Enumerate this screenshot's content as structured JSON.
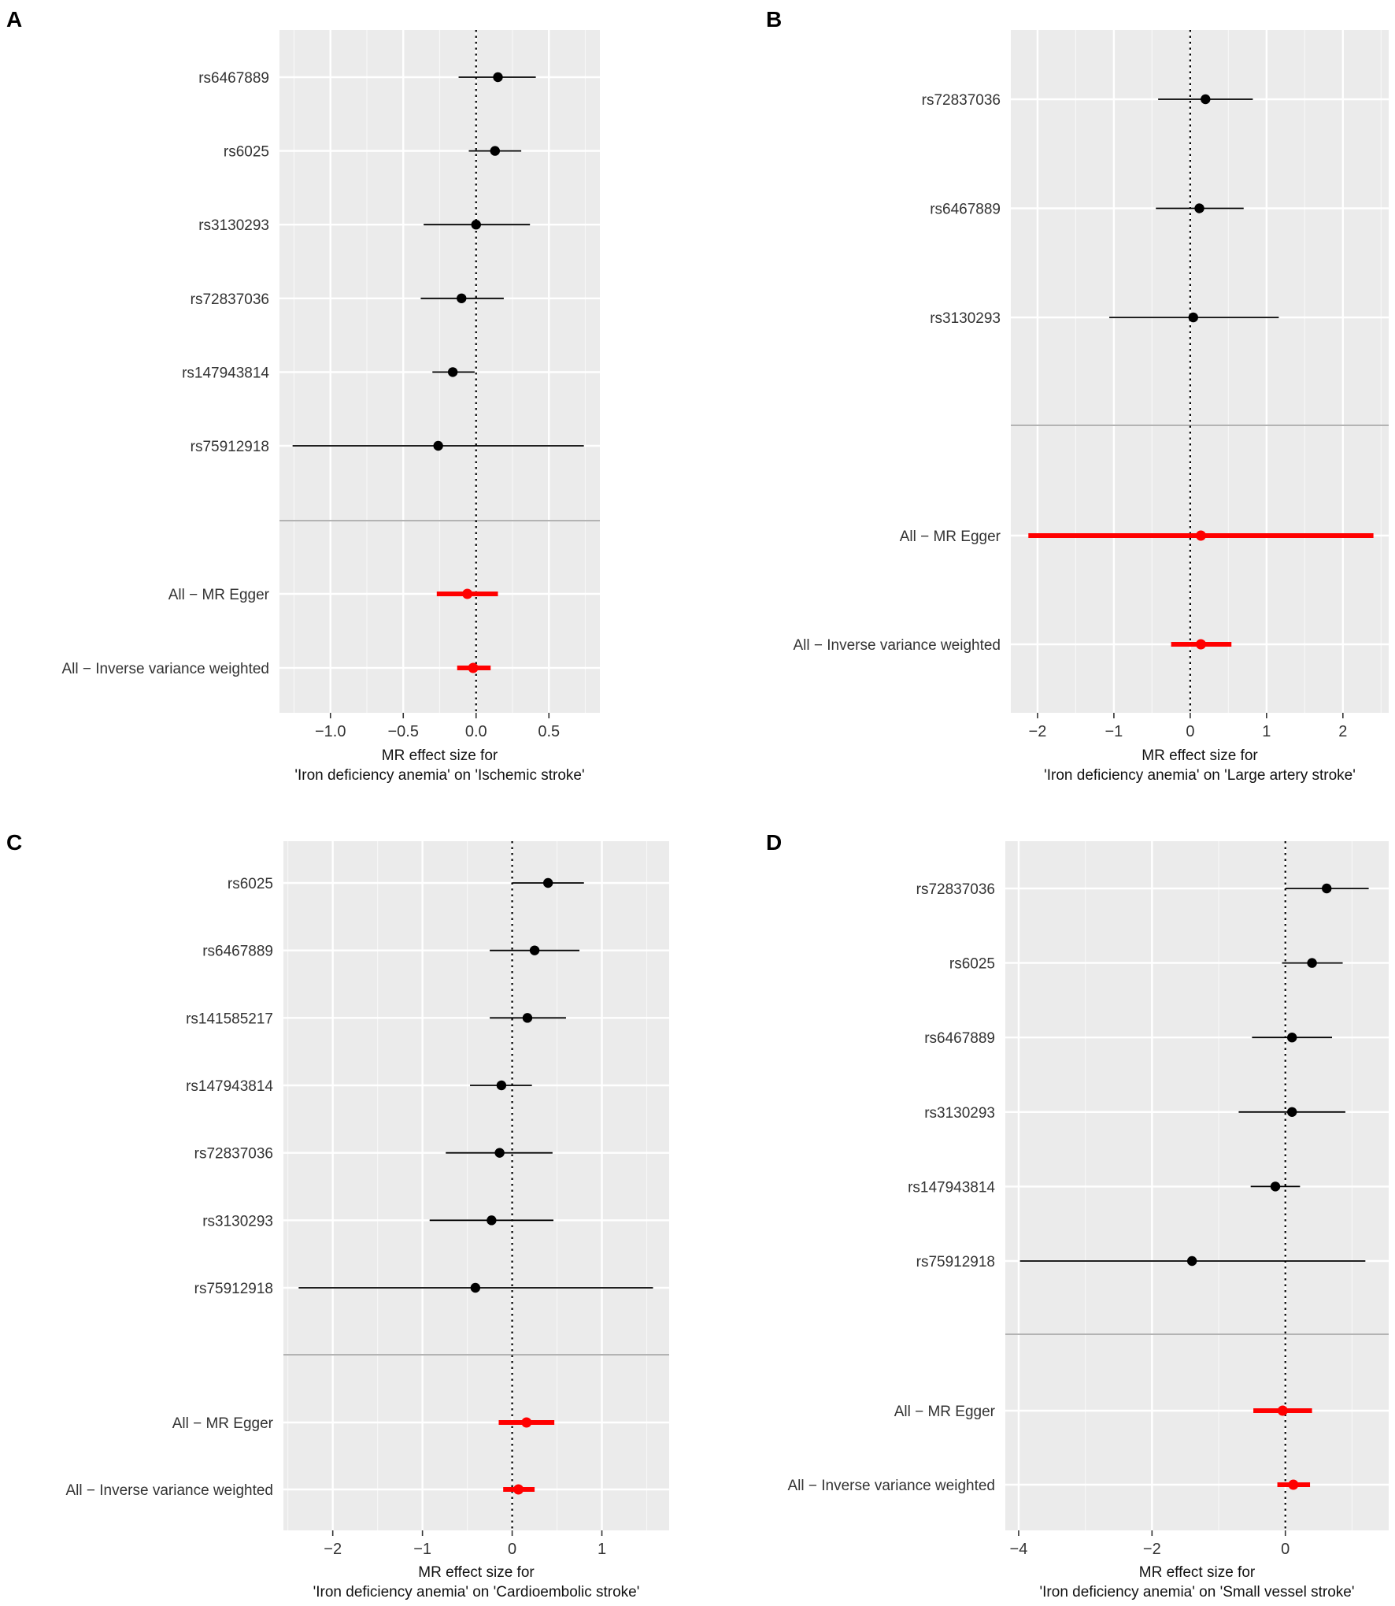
{
  "chart_data": [
    {
      "type": "forest",
      "panel": "A",
      "xlabel_line1": "MR effect size for",
      "xlabel_line2": "'Iron deficiency anemia' on 'Ischemic stroke'",
      "xlim": [
        -1.35,
        0.85
      ],
      "xticks": [
        -1.0,
        -0.5,
        0.0,
        0.5
      ],
      "xtick_labels": [
        "−1.0",
        "−0.5",
        "0.0",
        "0.5"
      ],
      "snps": [
        {
          "label": "rs6467889",
          "b": 0.15,
          "lo": -0.12,
          "hi": 0.41
        },
        {
          "label": "rs6025",
          "b": 0.13,
          "lo": -0.05,
          "hi": 0.31
        },
        {
          "label": "rs3130293",
          "b": 0.0,
          "lo": -0.36,
          "hi": 0.37
        },
        {
          "label": "rs72837036",
          "b": -0.1,
          "lo": -0.38,
          "hi": 0.19
        },
        {
          "label": "rs147943814",
          "b": -0.16,
          "lo": -0.3,
          "hi": -0.01
        },
        {
          "label": "rs75912918",
          "b": -0.26,
          "lo": -1.26,
          "hi": 0.74
        }
      ],
      "summary": [
        {
          "label": "All − MR Egger",
          "b": -0.06,
          "lo": -0.27,
          "hi": 0.15
        },
        {
          "label": "All − Inverse variance weighted",
          "b": -0.02,
          "lo": -0.13,
          "hi": 0.1
        }
      ]
    },
    {
      "type": "forest",
      "panel": "B",
      "xlabel_line1": "MR effect size for",
      "xlabel_line2": "'Iron deficiency anemia' on 'Large artery stroke'",
      "xlim": [
        -2.35,
        2.6
      ],
      "xticks": [
        -2,
        -1,
        0,
        1,
        2
      ],
      "xtick_labels": [
        "−2",
        "−1",
        "0",
        "1",
        "2"
      ],
      "snps": [
        {
          "label": "rs72837036",
          "b": 0.2,
          "lo": -0.42,
          "hi": 0.82
        },
        {
          "label": "rs6467889",
          "b": 0.12,
          "lo": -0.45,
          "hi": 0.7
        },
        {
          "label": "rs3130293",
          "b": 0.04,
          "lo": -1.06,
          "hi": 1.16
        }
      ],
      "summary": [
        {
          "label": "All − MR Egger",
          "b": 0.14,
          "lo": -2.12,
          "hi": 2.4
        },
        {
          "label": "All − Inverse variance weighted",
          "b": 0.14,
          "lo": -0.25,
          "hi": 0.54
        }
      ]
    },
    {
      "type": "forest",
      "panel": "C",
      "xlabel_line1": "MR effect size for",
      "xlabel_line2": "'Iron deficiency anemia' on 'Cardioembolic stroke'",
      "xlim": [
        -2.55,
        1.75
      ],
      "xticks": [
        -2,
        -1,
        0,
        1
      ],
      "xtick_labels": [
        "−2",
        "−1",
        "0",
        "1"
      ],
      "snps": [
        {
          "label": "rs6025",
          "b": 0.4,
          "lo": 0.0,
          "hi": 0.8
        },
        {
          "label": "rs6467889",
          "b": 0.25,
          "lo": -0.25,
          "hi": 0.75
        },
        {
          "label": "rs141585217",
          "b": 0.17,
          "lo": -0.25,
          "hi": 0.6
        },
        {
          "label": "rs147943814",
          "b": -0.12,
          "lo": -0.47,
          "hi": 0.22
        },
        {
          "label": "rs72837036",
          "b": -0.14,
          "lo": -0.74,
          "hi": 0.45
        },
        {
          "label": "rs3130293",
          "b": -0.23,
          "lo": -0.92,
          "hi": 0.46
        },
        {
          "label": "rs75912918",
          "b": -0.41,
          "lo": -2.38,
          "hi": 1.57
        }
      ],
      "summary": [
        {
          "label": "All − MR Egger",
          "b": 0.16,
          "lo": -0.15,
          "hi": 0.47
        },
        {
          "label": "All − Inverse variance weighted",
          "b": 0.07,
          "lo": -0.1,
          "hi": 0.25
        }
      ]
    },
    {
      "type": "forest",
      "panel": "D",
      "xlabel_line1": "MR effect size for",
      "xlabel_line2": "'Iron deficiency anemia' on 'Small vessel stroke'",
      "xlim": [
        -4.2,
        1.55
      ],
      "xticks": [
        -4,
        -2,
        0
      ],
      "xtick_labels": [
        "−4",
        "−2",
        "0"
      ],
      "snps": [
        {
          "label": "rs72837036",
          "b": 0.62,
          "lo": 0.0,
          "hi": 1.25
        },
        {
          "label": "rs6025",
          "b": 0.4,
          "lo": -0.05,
          "hi": 0.86
        },
        {
          "label": "rs6467889",
          "b": 0.1,
          "lo": -0.5,
          "hi": 0.7
        },
        {
          "label": "rs3130293",
          "b": 0.1,
          "lo": -0.7,
          "hi": 0.9
        },
        {
          "label": "rs147943814",
          "b": -0.15,
          "lo": -0.52,
          "hi": 0.22
        },
        {
          "label": "rs75912918",
          "b": -1.4,
          "lo": -3.98,
          "hi": 1.2
        }
      ],
      "summary": [
        {
          "label": "All − MR Egger",
          "b": -0.04,
          "lo": -0.48,
          "hi": 0.4
        },
        {
          "label": "All − Inverse variance weighted",
          "b": 0.12,
          "lo": -0.12,
          "hi": 0.37
        }
      ]
    }
  ]
}
